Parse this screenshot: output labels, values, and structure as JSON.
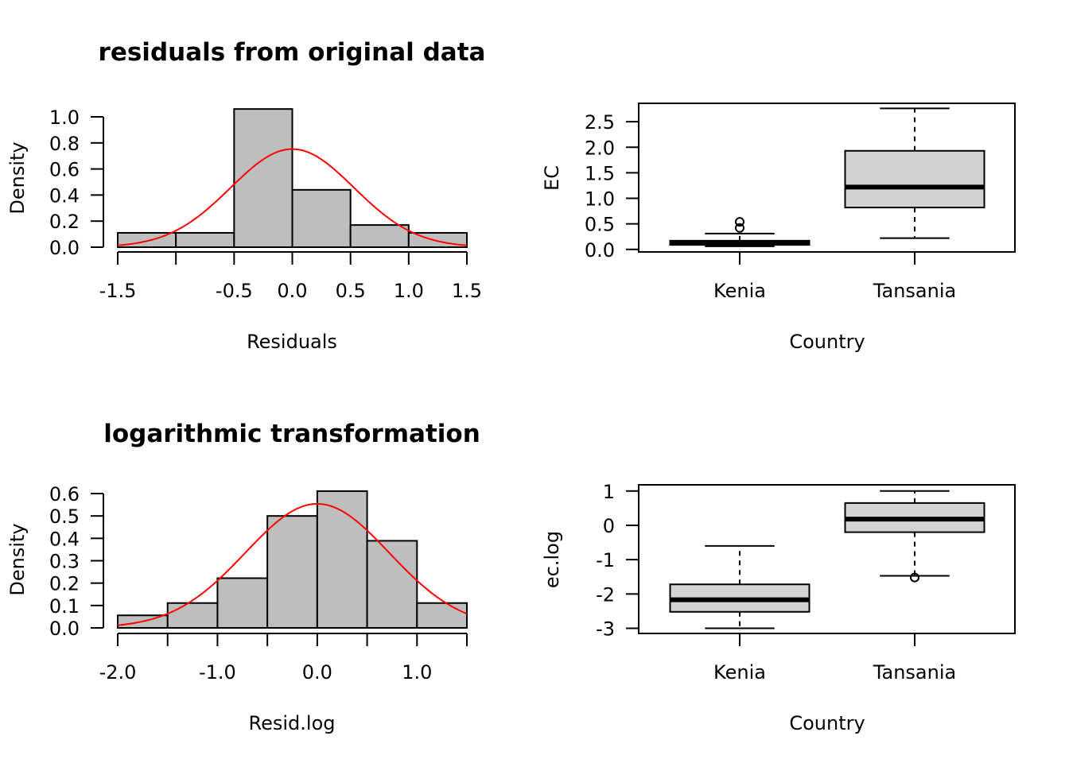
{
  "chart_data": [
    {
      "type": "bar",
      "subtype": "histogram",
      "title": "residuals from original data",
      "xlabel": "Residuals",
      "ylabel": "Density",
      "bin_edges": [
        -1.5,
        -1.0,
        -0.5,
        0.0,
        0.5,
        1.0,
        1.5
      ],
      "values": [
        0.11,
        0.11,
        1.06,
        0.44,
        0.17,
        0.11
      ],
      "xticks": [
        -1.5,
        -1.0,
        -0.5,
        0.0,
        0.5,
        1.0,
        1.5
      ],
      "xtick_labels": [
        "-1.5",
        "",
        "-0.5",
        "0.0",
        "0.5",
        "1.0",
        "1.5"
      ],
      "yticks": [
        0.0,
        0.2,
        0.4,
        0.6,
        0.8,
        1.0
      ],
      "ytick_labels": [
        "0.0",
        "0.2",
        "0.4",
        "0.6",
        "0.8",
        "1.0"
      ],
      "xlim": [
        -1.5,
        1.5
      ],
      "ylim": [
        0,
        1.0
      ],
      "density_curve": {
        "color": "#ff0000",
        "mean": 0.0,
        "sd": 0.53
      },
      "bar_color": "#bebebe",
      "grid": false
    },
    {
      "type": "boxplot",
      "xlabel": "Country",
      "ylabel": "EC",
      "categories": [
        "Kenia",
        "Tansania"
      ],
      "boxes": [
        {
          "whisker_low": 0.06,
          "q1": 0.09,
          "median": 0.12,
          "q3": 0.17,
          "whisker_high": 0.31,
          "outliers": [
            0.42,
            0.54
          ]
        },
        {
          "whisker_low": 0.22,
          "q1": 0.82,
          "median": 1.22,
          "q3": 1.93,
          "whisker_high": 2.76,
          "outliers": []
        }
      ],
      "yticks": [
        0.0,
        0.5,
        1.0,
        1.5,
        2.0,
        2.5
      ],
      "ytick_labels": [
        "0.0",
        "0.5",
        "1.0",
        "1.5",
        "2.0",
        "2.5"
      ],
      "ylim": [
        -0.05,
        2.86
      ],
      "box_color": "#d3d3d3",
      "grid": false
    },
    {
      "type": "bar",
      "subtype": "histogram",
      "title": "logarithmic transformation",
      "xlabel": "Resid.log",
      "ylabel": "Density",
      "bin_edges": [
        -2.0,
        -1.5,
        -1.0,
        -0.5,
        0.0,
        0.5,
        1.0,
        1.5
      ],
      "values": [
        0.056,
        0.111,
        0.222,
        0.5,
        0.611,
        0.389,
        0.111
      ],
      "xticks": [
        -2.0,
        -1.5,
        -1.0,
        -0.5,
        0.0,
        0.5,
        1.0,
        1.5
      ],
      "xtick_labels": [
        "-2.0",
        "",
        "-1.0",
        "",
        "0.0",
        "",
        "1.0",
        ""
      ],
      "yticks": [
        0.0,
        0.1,
        0.2,
        0.3,
        0.4,
        0.5,
        0.6
      ],
      "ytick_labels": [
        "0.0",
        "0.1",
        "0.2",
        "0.3",
        "0.4",
        "0.5",
        "0.6"
      ],
      "xlim": [
        -2.0,
        1.5
      ],
      "ylim": [
        0,
        0.6
      ],
      "density_curve": {
        "color": "#ff0000",
        "mean": 0.0,
        "sd": 0.72
      },
      "bar_color": "#bebebe",
      "grid": false
    },
    {
      "type": "boxplot",
      "xlabel": "Country",
      "ylabel": "ec.log",
      "categories": [
        "Kenia",
        "Tansania"
      ],
      "boxes": [
        {
          "whisker_low": -3.0,
          "q1": -2.52,
          "median": -2.17,
          "q3": -1.72,
          "whisker_high": -0.6,
          "outliers": []
        },
        {
          "whisker_low": -1.47,
          "q1": -0.2,
          "median": 0.18,
          "q3": 0.65,
          "whisker_high": 1.0,
          "outliers": [
            -1.52
          ]
        }
      ],
      "yticks": [
        -3,
        -2,
        -1,
        0,
        1
      ],
      "ytick_labels": [
        "-3",
        "-2",
        "-1",
        "0",
        "1"
      ],
      "ylim": [
        -3.15,
        1.18
      ],
      "box_color": "#d3d3d3",
      "grid": false
    }
  ]
}
